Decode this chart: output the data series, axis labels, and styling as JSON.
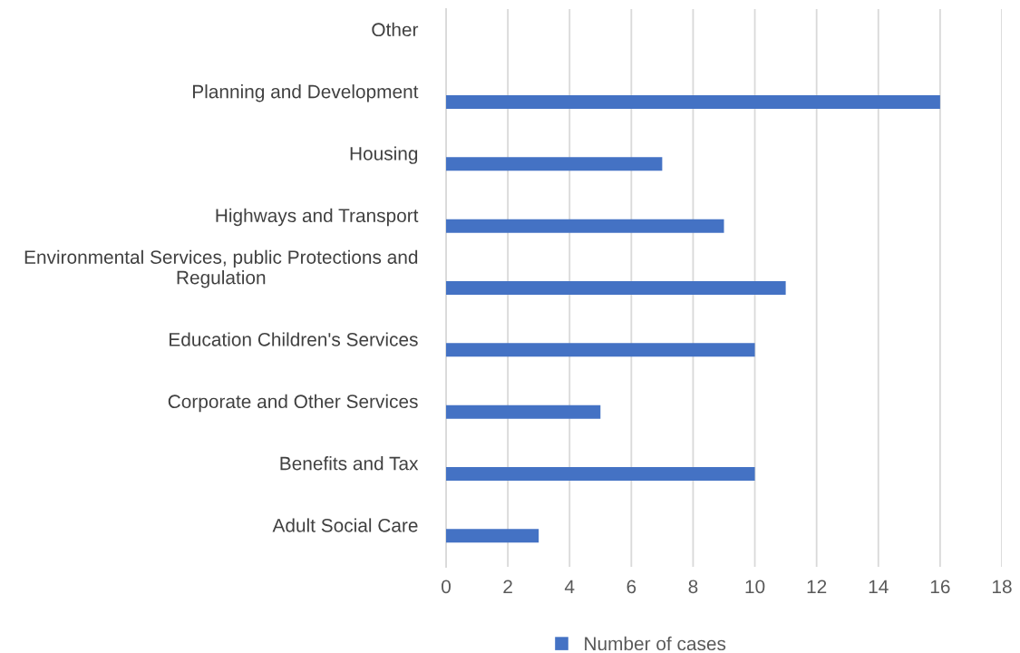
{
  "chart_data": {
    "type": "bar",
    "orientation": "horizontal",
    "categories": [
      "Other",
      "Planning and Development",
      "Housing",
      "Highways and Transport",
      "Environmental Services, public Protections and Regulation",
      "Education Children's Services",
      "Corporate and Other Services",
      "Benefits and Tax",
      "Adult Social Care"
    ],
    "series": [
      {
        "name": "Number of cases",
        "color": "#4472c4",
        "values": [
          0,
          16,
          7,
          9,
          11,
          10,
          5,
          10,
          3
        ]
      }
    ],
    "xlim": [
      0,
      18
    ],
    "xticks": [
      0,
      2,
      4,
      6,
      8,
      10,
      12,
      14,
      16,
      18
    ],
    "grid": "x",
    "legend": "bottom"
  }
}
